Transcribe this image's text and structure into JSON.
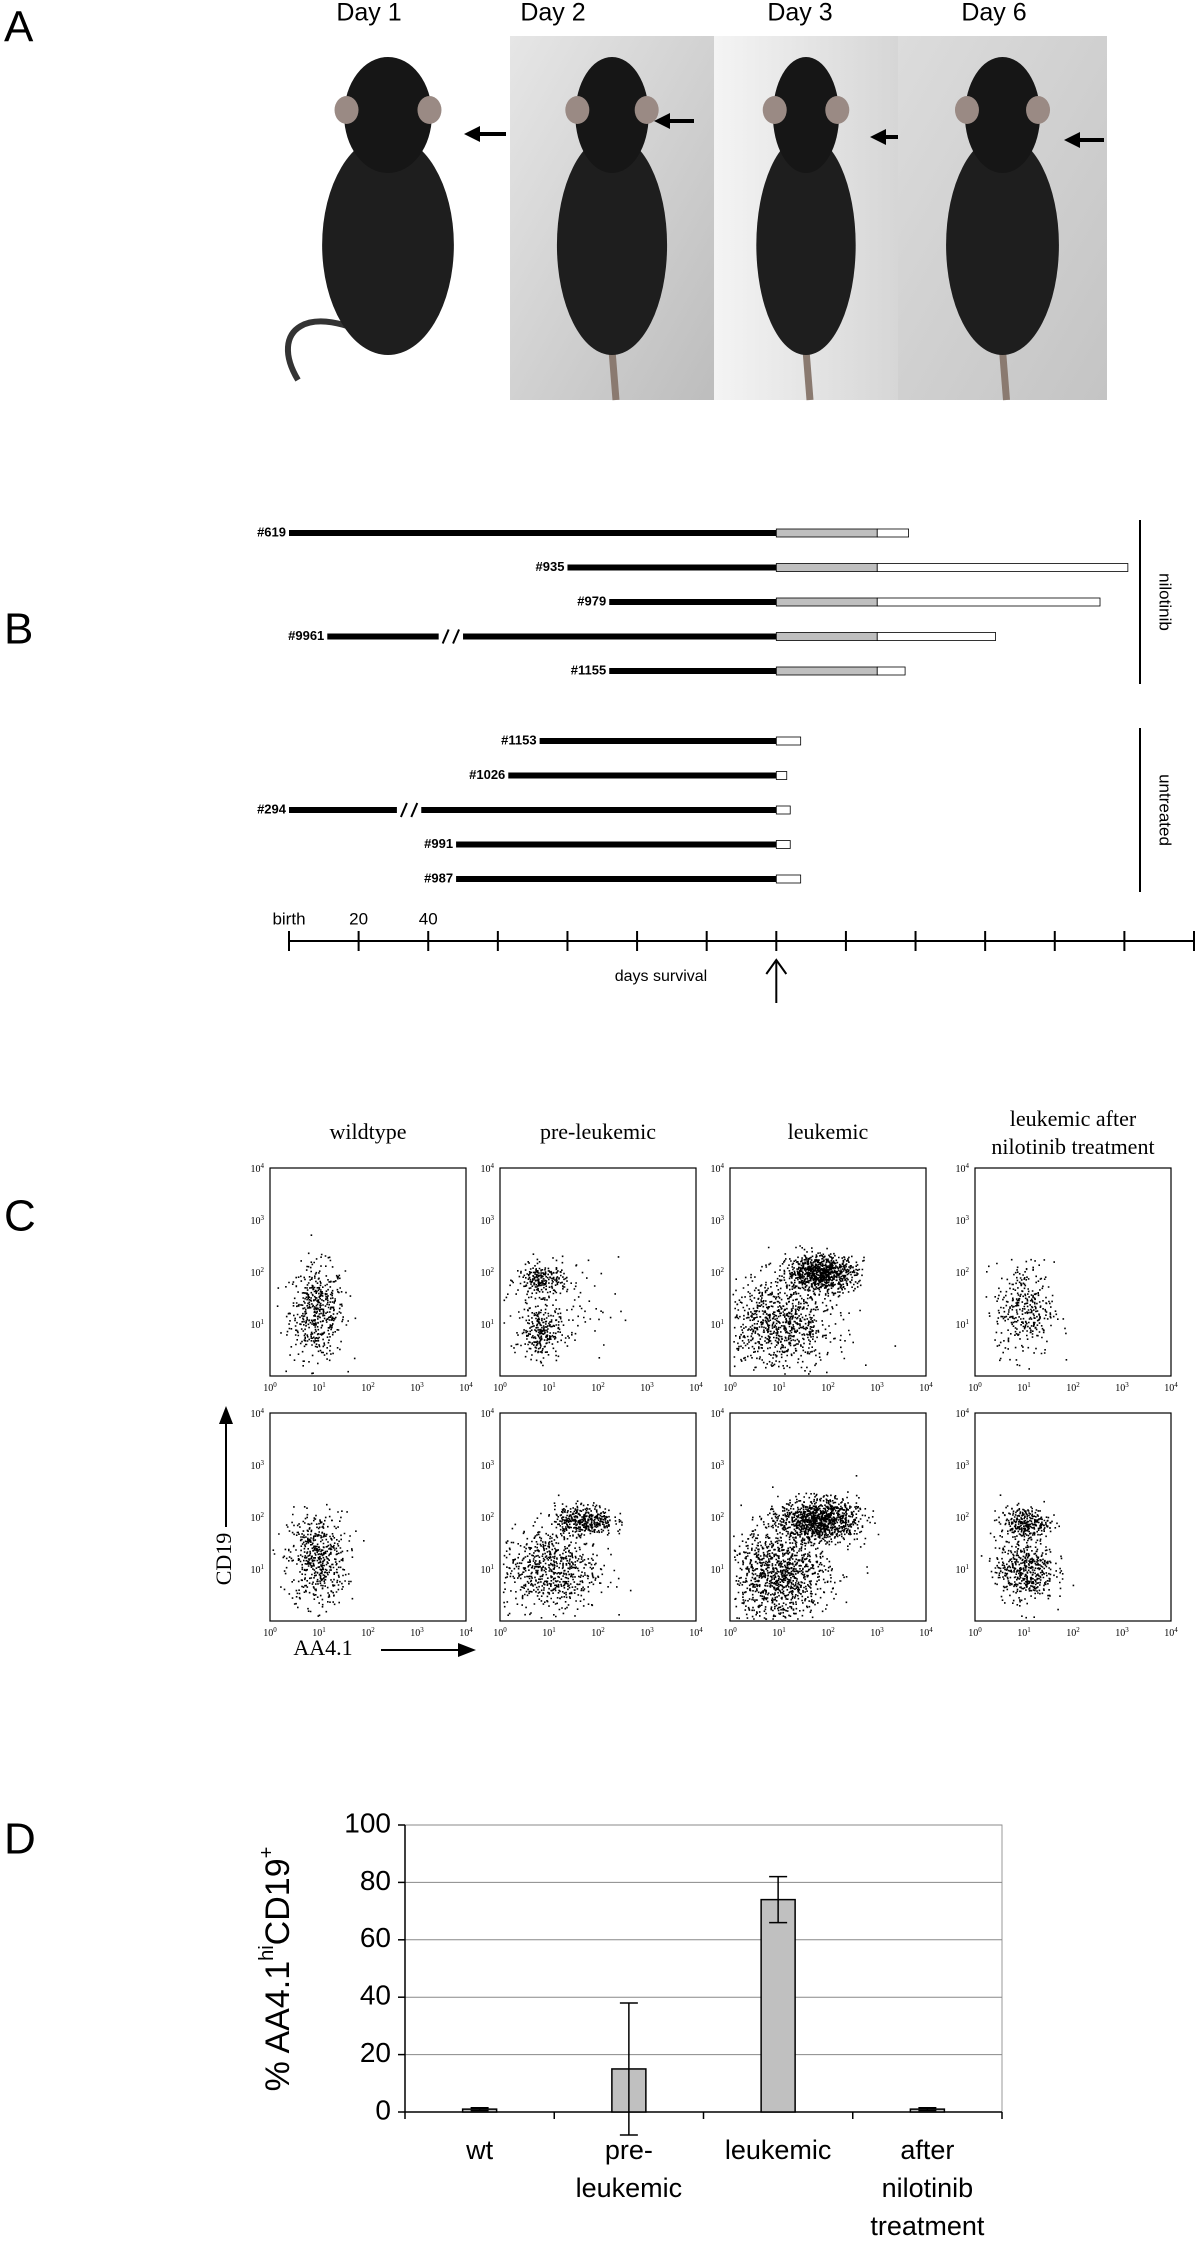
{
  "panel_labels": {
    "a": "A",
    "b": "B",
    "c": "C",
    "d": "D"
  },
  "panel_a": {
    "days": [
      "Day 1",
      "Day 2",
      "Day 3",
      "Day 6"
    ]
  },
  "chart_data": [
    {
      "type": "timeline",
      "xlim": [
        0,
        260
      ],
      "xticks": [
        {
          "value": 0,
          "label": "birth"
        },
        20,
        40
      ],
      "minor_xticks": [
        60,
        80,
        100,
        120,
        140,
        160,
        180,
        200,
        220,
        240,
        260
      ],
      "x_label": "days survival",
      "arrow_x": 140,
      "segment_colors": [
        "#000000",
        "#bfbfbf",
        "#ffffff"
      ],
      "groups": [
        {
          "name": "nilotinib",
          "mice": [
            {
              "id": "#619",
              "start": 0,
              "onset": 140,
              "treatment_end": 169,
              "end": 178
            },
            {
              "id": "#935",
              "start": 80,
              "onset": 140,
              "treatment_end": 169,
              "end": 241
            },
            {
              "id": "#979",
              "start": 92,
              "onset": 140,
              "treatment_end": 169,
              "end": 233
            },
            {
              "id": "#9961",
              "start": 11,
              "break": [
                43,
                50
              ],
              "onset": 140,
              "treatment_end": 169,
              "end": 203
            },
            {
              "id": "#1155",
              "start": 92,
              "onset": 140,
              "treatment_end": 169,
              "end": 177
            }
          ]
        },
        {
          "name": "untreated",
          "mice": [
            {
              "id": "#1153",
              "start": 72,
              "onset": 140,
              "end": 147
            },
            {
              "id": "#1026",
              "start": 63,
              "onset": 140,
              "end": 143
            },
            {
              "id": "#294",
              "start": 0,
              "break": [
                31,
                38
              ],
              "onset": 140,
              "end": 144
            },
            {
              "id": "#991",
              "start": 48,
              "onset": 140,
              "end": 144
            },
            {
              "id": "#987",
              "start": 48,
              "onset": 140,
              "end": 147
            }
          ]
        }
      ]
    },
    {
      "type": "bar",
      "y_label": [
        "% AA4.1",
        "hi",
        "CD19",
        "+"
      ],
      "categories": [
        [
          "wt"
        ],
        [
          "pre-",
          "leukemic"
        ],
        [
          "leukemic"
        ],
        [
          "after",
          "nilotinib",
          "treatment"
        ]
      ],
      "values": [
        1,
        15,
        74,
        1
      ],
      "errors": [
        0.5,
        23,
        8,
        0.5
      ],
      "color": "#c0c0c0",
      "ylim": [
        0,
        100
      ],
      "yticks": [
        0,
        20,
        40,
        60,
        80,
        100
      ],
      "grid": true
    }
  ],
  "panel_c": {
    "columns": [
      [
        "wildtype"
      ],
      [
        "pre-leukemic"
      ],
      [
        "leukemic"
      ],
      [
        "leukemic after",
        "nilotinib treatment"
      ]
    ],
    "y_label": "CD19",
    "x_label": "AA4.1",
    "decade_base": "10",
    "decade_exponents": [
      "0",
      "1",
      "2",
      "3",
      "4"
    ]
  }
}
